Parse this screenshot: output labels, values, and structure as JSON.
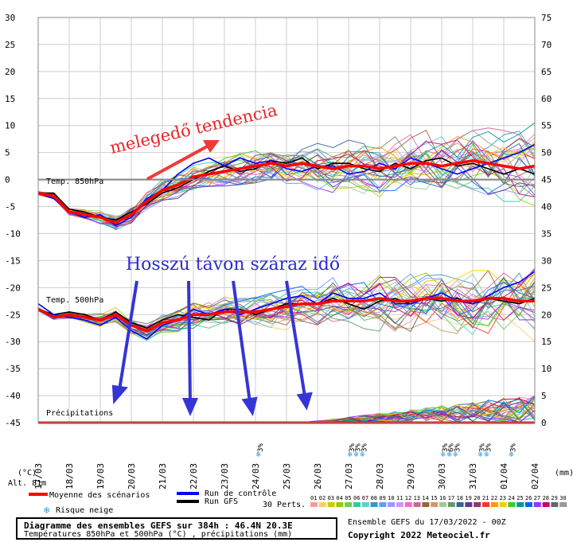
{
  "chart_data": {
    "type": "line",
    "left_axis_ticks": [
      30,
      25,
      20,
      15,
      10,
      5,
      0,
      -5,
      -10,
      -15,
      -20,
      -25,
      -30,
      -35,
      -40,
      -45
    ],
    "right_axis_ticks": [
      75,
      70,
      65,
      60,
      55,
      50,
      45,
      40,
      35,
      30,
      25,
      20,
      15,
      10,
      5,
      0
    ],
    "left_axis_unit": "(°C)",
    "right_axis_unit": "(mm)",
    "altitude_label": "Alt. 81m",
    "x_labels": [
      "17/03",
      "18/03",
      "19/03",
      "20/03",
      "21/03",
      "22/03",
      "23/03",
      "24/03",
      "25/03",
      "26/03",
      "27/03",
      "28/03",
      "29/03",
      "30/03",
      "31/03",
      "01/04",
      "02/04"
    ],
    "panel_labels": {
      "t850": "Temp. 850hPa",
      "t500": "Temp. 500hPa",
      "precip": "Précipitations"
    },
    "series": [
      {
        "name": "Moyenne des scénarios",
        "color": "#ff0000",
        "t850": [
          -2.5,
          -3,
          -6,
          -6.5,
          -7,
          -8,
          -6.5,
          -4,
          -2,
          -1,
          0.5,
          1,
          1.5,
          2,
          2.5,
          3,
          2.5,
          3,
          2.5,
          2,
          2.5,
          2.5,
          2,
          2.5,
          3,
          3,
          2.5,
          3,
          3.5,
          3,
          2.5,
          2,
          2.5
        ],
        "t500": [
          -24,
          -25.5,
          -25,
          -25.5,
          -26,
          -25,
          -27,
          -28,
          -26.5,
          -26,
          -25,
          -25,
          -24.5,
          -24.5,
          -24.5,
          -24,
          -23.5,
          -23,
          -23,
          -22.5,
          -22.5,
          -22.5,
          -22,
          -22.5,
          -22.5,
          -22,
          -22,
          -22.5,
          -22.5,
          -22,
          -22,
          -22.5,
          -22.5
        ]
      },
      {
        "name": "Run de contrôle",
        "color": "#0000ff",
        "t850": [
          -2.5,
          -3.5,
          -6,
          -7,
          -6.5,
          -8.5,
          -7,
          -3.5,
          -2,
          1,
          3,
          4,
          2.5,
          4,
          3,
          3.5,
          2,
          1.5,
          2.5,
          2.5,
          1,
          1.5,
          3,
          2,
          4,
          3,
          2,
          1,
          2,
          3,
          4,
          5,
          6.5
        ],
        "t500": [
          -23,
          -25,
          -25.5,
          -26,
          -27,
          -25.5,
          -28,
          -29.5,
          -27,
          -26,
          -24,
          -25,
          -24,
          -25,
          -24,
          -23,
          -22,
          -21.5,
          -23,
          -21,
          -22,
          -22,
          -21,
          -23,
          -23,
          -22,
          -21,
          -22.5,
          -23,
          -21.5,
          -20,
          -19,
          -17
        ]
      },
      {
        "name": "Run GFS",
        "color": "#000000",
        "t850": [
          -2.5,
          -2.5,
          -5.5,
          -6,
          -7,
          -7.5,
          -6,
          -4.5,
          -2.5,
          -1.5,
          0,
          1.5,
          2.5,
          1.5,
          2,
          3.5,
          3,
          4,
          2,
          3,
          3,
          2,
          1.5,
          3,
          2,
          3.5,
          4,
          2.5,
          3,
          2,
          1,
          2,
          1
        ],
        "t500": [
          -24,
          -25,
          -24.5,
          -25,
          -26,
          -24.5,
          -26.5,
          -27.5,
          -26,
          -25,
          -25.5,
          -26,
          -24,
          -24,
          -25,
          -24,
          -23,
          -23,
          -23,
          -22,
          -23,
          -24,
          -22.5,
          -22,
          -23,
          -22,
          -22.5,
          -22,
          -23,
          -22,
          -22.5,
          -23,
          -22
        ]
      }
    ],
    "legend": [
      {
        "label": "Moyenne des scénarios",
        "color": "#ff0000"
      },
      {
        "label": "Run de contrôle",
        "color": "#0000ff"
      },
      {
        "label": "Run GFS",
        "color": "#000000"
      }
    ],
    "snow_risk_label": "Risque neige",
    "snow_markers": [
      {
        "x_index": 14.3,
        "pct": "3%"
      },
      {
        "x_index": 20.2,
        "pct": "3%"
      },
      {
        "x_index": 20.6,
        "pct": "3%"
      },
      {
        "x_index": 21.0,
        "pct": "3%"
      },
      {
        "x_index": 26.2,
        "pct": "3%"
      },
      {
        "x_index": 26.6,
        "pct": "6%"
      },
      {
        "x_index": 27.0,
        "pct": "3%"
      },
      {
        "x_index": 28.6,
        "pct": "3%"
      },
      {
        "x_index": 29.0,
        "pct": "3%"
      },
      {
        "x_index": 30.6,
        "pct": "3%"
      }
    ],
    "perturbations_label": "30 Perts.",
    "perturbations": [
      "01",
      "02",
      "03",
      "04",
      "05",
      "06",
      "07",
      "08",
      "09",
      "10",
      "11",
      "12",
      "13",
      "14",
      "15",
      "16",
      "17",
      "18",
      "19",
      "20",
      "21",
      "22",
      "23",
      "24",
      "25",
      "26",
      "27",
      "28",
      "29",
      "30"
    ],
    "perturbation_colors": [
      "#ff9999",
      "#ffcc66",
      "#cccc00",
      "#99cc00",
      "#66cc66",
      "#33cc99",
      "#66cccc",
      "#3399cc",
      "#6699ff",
      "#9999ff",
      "#cc99ff",
      "#ff66cc",
      "#cc6699",
      "#996633",
      "#cc9966",
      "#99cc99",
      "#669966",
      "#336699",
      "#663399",
      "#993366",
      "#ff3333",
      "#ff9900",
      "#ffcc00",
      "#33cc33",
      "#009999",
      "#0066ff",
      "#9933ff",
      "#cc0066",
      "#666666",
      "#999999"
    ],
    "annotations": {
      "red_text": "melegedő tendencia",
      "blue_text": "Hosszú távon száraz idő"
    }
  },
  "footer": {
    "title": "Diagramme des ensembles GEFS sur 384h : 46.4N 20.3E",
    "subtitle": "Températures 850hPa et 500hPa (°C) , précipitations (mm)",
    "ensemble": "Ensemble GEFS du 17/03/2022 - 00Z",
    "copyright": "Copyright 2022 Meteociel.fr"
  }
}
